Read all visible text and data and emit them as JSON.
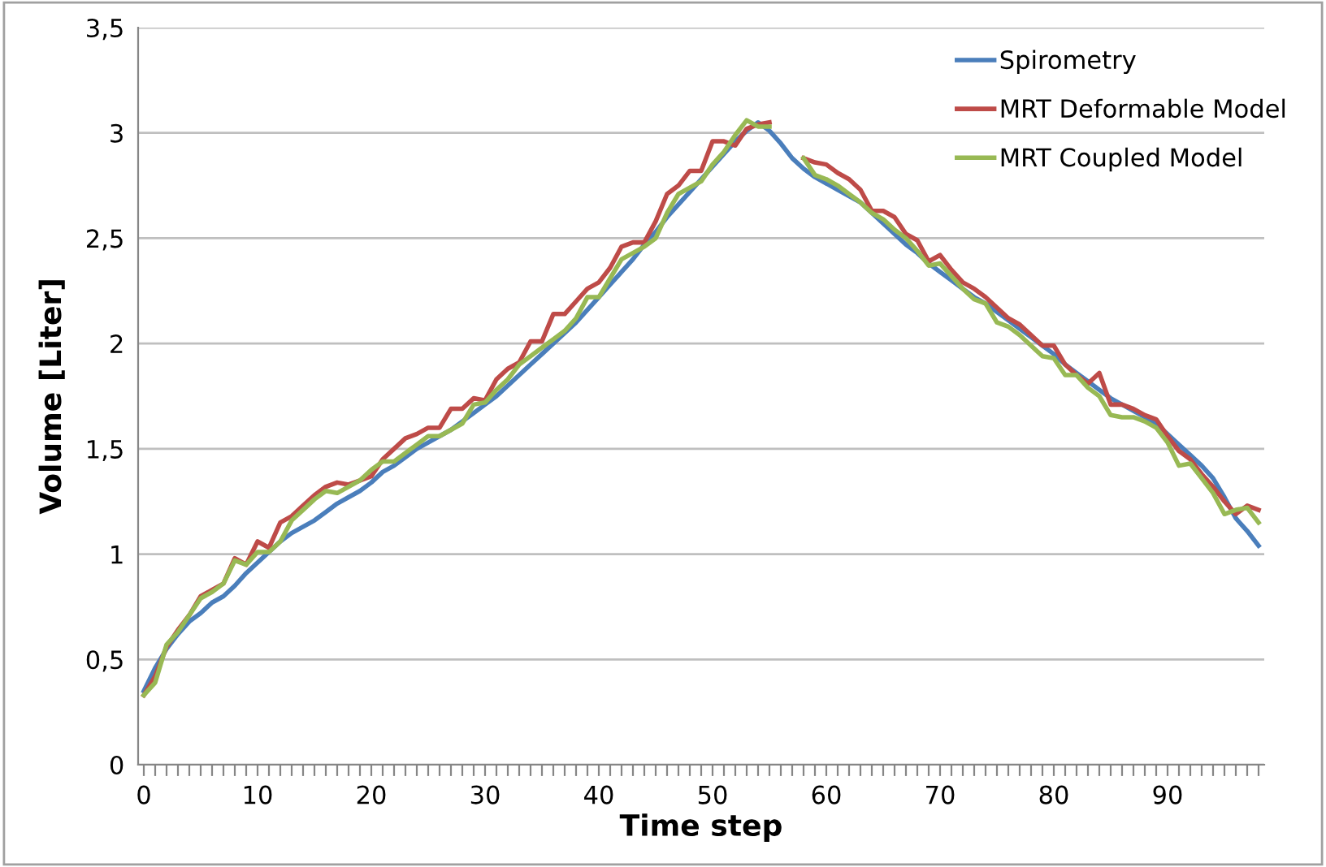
{
  "chart_data": {
    "type": "line",
    "xlabel": "Time step",
    "ylabel": "Volume [Liter]",
    "x": [
      0,
      1,
      2,
      3,
      4,
      5,
      6,
      7,
      8,
      9,
      10,
      11,
      12,
      13,
      14,
      15,
      16,
      17,
      18,
      19,
      20,
      21,
      22,
      23,
      24,
      25,
      26,
      27,
      28,
      29,
      30,
      31,
      32,
      33,
      34,
      35,
      36,
      37,
      38,
      39,
      40,
      41,
      42,
      43,
      44,
      45,
      46,
      47,
      48,
      49,
      50,
      51,
      52,
      53,
      54,
      55,
      56,
      57,
      58,
      59,
      60,
      61,
      62,
      63,
      64,
      65,
      66,
      67,
      68,
      69,
      70,
      71,
      72,
      73,
      74,
      75,
      76,
      77,
      78,
      79,
      80,
      81,
      82,
      83,
      84,
      85,
      86,
      87,
      88,
      89,
      90,
      91,
      92,
      93,
      94,
      95,
      96,
      97,
      98
    ],
    "xlim": [
      -0.5,
      98.5
    ],
    "xticks": [
      0,
      {
        "value": 1,
        "label": null
      },
      {
        "value": 2,
        "label": null
      },
      {
        "value": 3,
        "label": null
      },
      {
        "value": 4,
        "label": null
      },
      {
        "value": 5,
        "label": null
      },
      {
        "value": 6,
        "label": null
      },
      {
        "value": 7,
        "label": null
      },
      {
        "value": 8,
        "label": null
      },
      {
        "value": 9,
        "label": null
      },
      10,
      {
        "value": 11,
        "label": null
      },
      {
        "value": 12,
        "label": null
      },
      {
        "value": 13,
        "label": null
      },
      {
        "value": 14,
        "label": null
      },
      {
        "value": 15,
        "label": null
      },
      {
        "value": 16,
        "label": null
      },
      {
        "value": 17,
        "label": null
      },
      {
        "value": 18,
        "label": null
      },
      {
        "value": 19,
        "label": null
      },
      20,
      {
        "value": 21,
        "label": null
      },
      {
        "value": 22,
        "label": null
      },
      {
        "value": 23,
        "label": null
      },
      {
        "value": 24,
        "label": null
      },
      {
        "value": 25,
        "label": null
      },
      {
        "value": 26,
        "label": null
      },
      {
        "value": 27,
        "label": null
      },
      {
        "value": 28,
        "label": null
      },
      {
        "value": 29,
        "label": null
      },
      30,
      {
        "value": 31,
        "label": null
      },
      {
        "value": 32,
        "label": null
      },
      {
        "value": 33,
        "label": null
      },
      {
        "value": 34,
        "label": null
      },
      {
        "value": 35,
        "label": null
      },
      {
        "value": 36,
        "label": null
      },
      {
        "value": 37,
        "label": null
      },
      {
        "value": 38,
        "label": null
      },
      {
        "value": 39,
        "label": null
      },
      40,
      {
        "value": 41,
        "label": null
      },
      {
        "value": 42,
        "label": null
      },
      {
        "value": 43,
        "label": null
      },
      {
        "value": 44,
        "label": null
      },
      {
        "value": 45,
        "label": null
      },
      {
        "value": 46,
        "label": null
      },
      {
        "value": 47,
        "label": null
      },
      {
        "value": 48,
        "label": null
      },
      {
        "value": 49,
        "label": null
      },
      50,
      {
        "value": 51,
        "label": null
      },
      {
        "value": 52,
        "label": null
      },
      {
        "value": 53,
        "label": null
      },
      {
        "value": 54,
        "label": null
      },
      {
        "value": 55,
        "label": null
      },
      {
        "value": 56,
        "label": null
      },
      {
        "value": 57,
        "label": null
      },
      {
        "value": 58,
        "label": null
      },
      {
        "value": 59,
        "label": null
      },
      60,
      {
        "value": 61,
        "label": null
      },
      {
        "value": 62,
        "label": null
      },
      {
        "value": 63,
        "label": null
      },
      {
        "value": 64,
        "label": null
      },
      {
        "value": 65,
        "label": null
      },
      {
        "value": 66,
        "label": null
      },
      {
        "value": 67,
        "label": null
      },
      {
        "value": 68,
        "label": null
      },
      {
        "value": 69,
        "label": null
      },
      70,
      {
        "value": 71,
        "label": null
      },
      {
        "value": 72,
        "label": null
      },
      {
        "value": 73,
        "label": null
      },
      {
        "value": 74,
        "label": null
      },
      {
        "value": 75,
        "label": null
      },
      {
        "value": 76,
        "label": null
      },
      {
        "value": 77,
        "label": null
      },
      {
        "value": 78,
        "label": null
      },
      {
        "value": 79,
        "label": null
      },
      80,
      {
        "value": 81,
        "label": null
      },
      {
        "value": 82,
        "label": null
      },
      {
        "value": 83,
        "label": null
      },
      {
        "value": 84,
        "label": null
      },
      {
        "value": 85,
        "label": null
      },
      {
        "value": 86,
        "label": null
      },
      {
        "value": 87,
        "label": null
      },
      {
        "value": 88,
        "label": null
      },
      {
        "value": 89,
        "label": null
      },
      90,
      {
        "value": 91,
        "label": null
      },
      {
        "value": 92,
        "label": null
      },
      {
        "value": 93,
        "label": null
      },
      {
        "value": 94,
        "label": null
      },
      {
        "value": 95,
        "label": null
      },
      {
        "value": 96,
        "label": null
      },
      {
        "value": 97,
        "label": null
      },
      {
        "value": 98,
        "label": null
      }
    ],
    "ylim": [
      0,
      3.5
    ],
    "yticks": [
      0,
      {
        "value": 0.5,
        "label": "0,5"
      },
      1,
      {
        "value": 1.5,
        "label": "1,5"
      },
      2,
      {
        "value": 2.5,
        "label": "2,5"
      },
      3,
      {
        "value": 3.5,
        "label": "3,5"
      }
    ],
    "grid": "y",
    "legend": "top right",
    "marker": "none",
    "line_style": "solid",
    "series": [
      {
        "name": "Spirometry",
        "color": "#4a7ebb",
        "values": [
          0.35,
          0.46,
          0.55,
          0.62,
          0.68,
          0.72,
          0.77,
          0.8,
          0.85,
          0.91,
          0.96,
          1.01,
          1.06,
          1.1,
          1.13,
          1.16,
          1.2,
          1.24,
          1.27,
          1.3,
          1.34,
          1.39,
          1.42,
          1.46,
          1.5,
          1.53,
          1.56,
          1.59,
          1.63,
          1.67,
          1.71,
          1.75,
          1.8,
          1.85,
          1.9,
          1.95,
          2.0,
          2.05,
          2.1,
          2.16,
          2.22,
          2.28,
          2.34,
          2.4,
          2.47,
          2.53,
          2.6,
          2.66,
          2.72,
          2.78,
          2.84,
          2.9,
          2.96,
          3.01,
          3.05,
          3.01,
          2.95,
          2.88,
          2.83,
          2.79,
          2.76,
          2.73,
          2.7,
          2.67,
          2.62,
          2.57,
          2.52,
          2.47,
          2.43,
          2.38,
          2.34,
          2.3,
          2.26,
          2.22,
          2.19,
          2.15,
          2.11,
          2.07,
          2.03,
          1.99,
          1.95,
          1.9,
          1.86,
          1.82,
          1.78,
          1.74,
          1.71,
          1.68,
          1.65,
          1.62,
          1.57,
          1.52,
          1.47,
          1.42,
          1.36,
          1.27,
          1.17,
          1.11,
          1.04
        ]
      },
      {
        "name": "MRT Deformable Model",
        "color": "#be4b48",
        "values": [
          0.33,
          0.42,
          0.56,
          0.64,
          0.71,
          0.8,
          0.83,
          0.86,
          0.98,
          0.95,
          1.06,
          1.03,
          1.15,
          1.18,
          1.23,
          1.28,
          1.32,
          1.34,
          1.33,
          1.35,
          1.37,
          1.45,
          1.5,
          1.55,
          1.57,
          1.6,
          1.6,
          1.69,
          1.69,
          1.74,
          1.73,
          1.83,
          1.88,
          1.91,
          2.01,
          2.01,
          2.14,
          2.14,
          2.2,
          2.26,
          2.29,
          2.36,
          2.46,
          2.48,
          2.48,
          2.58,
          2.71,
          2.75,
          2.82,
          2.82,
          2.96,
          2.96,
          2.94,
          3.02,
          3.04,
          3.05,
          null,
          null,
          2.88,
          2.86,
          2.85,
          2.81,
          2.78,
          2.73,
          2.63,
          2.63,
          2.6,
          2.52,
          2.49,
          2.39,
          2.42,
          2.35,
          2.29,
          2.26,
          2.22,
          2.17,
          2.12,
          2.09,
          2.04,
          1.99,
          1.99,
          1.9,
          1.85,
          1.81,
          1.86,
          1.71,
          1.71,
          1.69,
          1.66,
          1.64,
          1.56,
          1.49,
          1.45,
          1.38,
          1.32,
          1.25,
          1.19,
          1.23,
          1.21
        ]
      },
      {
        "name": "MRT Coupled Model",
        "color": "#98b954",
        "values": [
          0.33,
          0.39,
          0.57,
          0.63,
          0.71,
          0.79,
          0.82,
          0.86,
          0.97,
          0.95,
          1.01,
          1.01,
          1.06,
          1.16,
          1.21,
          1.26,
          1.3,
          1.29,
          1.32,
          1.35,
          1.4,
          1.44,
          1.44,
          1.48,
          1.52,
          1.56,
          1.56,
          1.59,
          1.62,
          1.71,
          1.72,
          1.78,
          1.83,
          1.9,
          1.94,
          1.98,
          2.02,
          2.06,
          2.12,
          2.22,
          2.22,
          2.31,
          2.4,
          2.43,
          2.46,
          2.5,
          2.62,
          2.71,
          2.74,
          2.77,
          2.85,
          2.91,
          2.99,
          3.06,
          3.03,
          3.03,
          null,
          null,
          2.88,
          2.8,
          2.78,
          2.75,
          2.71,
          2.67,
          2.62,
          2.59,
          2.54,
          2.5,
          2.44,
          2.37,
          2.38,
          2.32,
          2.26,
          2.21,
          2.19,
          2.1,
          2.08,
          2.04,
          1.99,
          1.94,
          1.93,
          1.85,
          1.85,
          1.79,
          1.75,
          1.66,
          1.65,
          1.65,
          1.63,
          1.6,
          1.53,
          1.42,
          1.43,
          1.36,
          1.29,
          1.19,
          1.21,
          1.22,
          1.15
        ]
      }
    ]
  }
}
